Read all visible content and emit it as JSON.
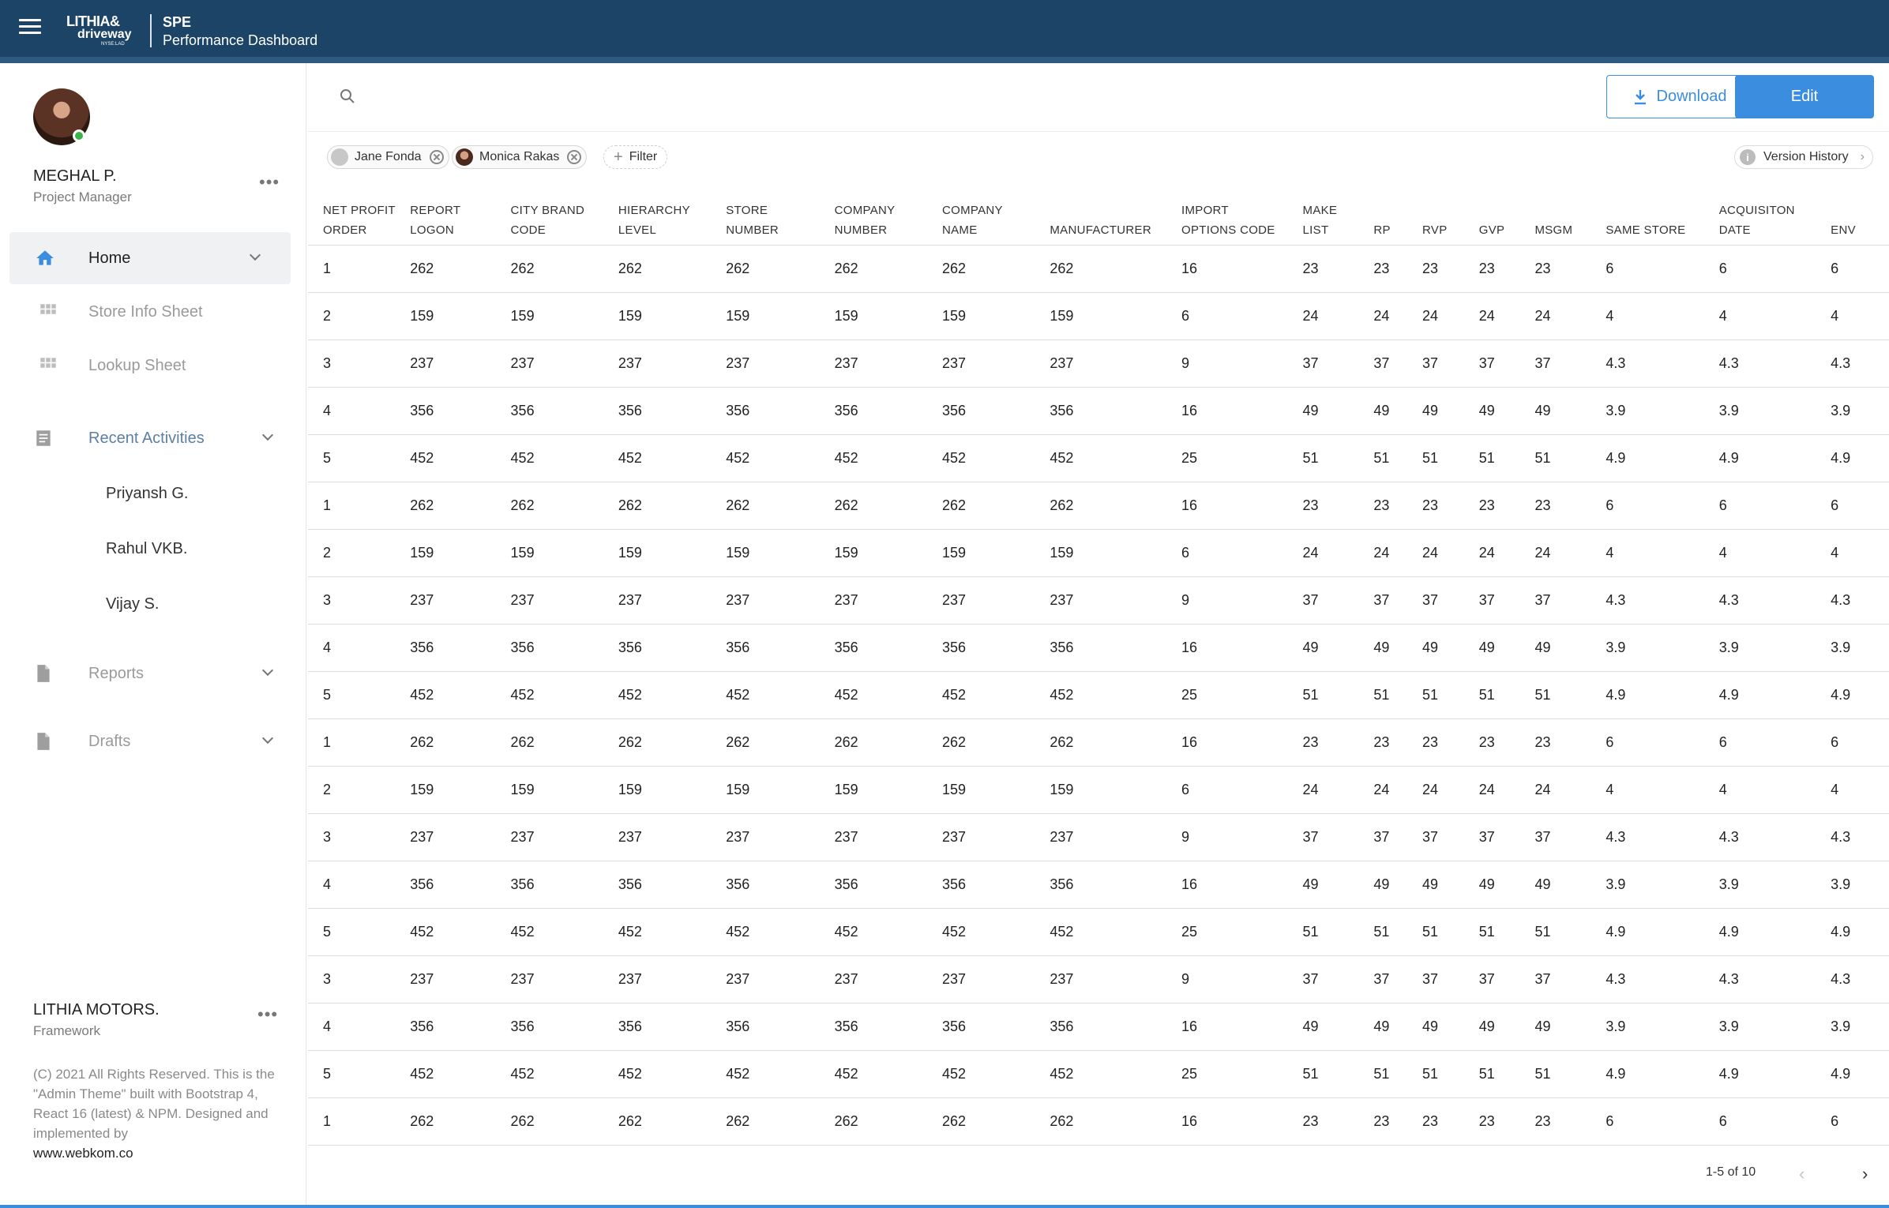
{
  "app": {
    "logo_line1": "LITHIA&",
    "logo_line2": "driveway",
    "logo_line3": "NYSE:LAD",
    "title": "SPE",
    "subtitle": "Performance Dashboard"
  },
  "user": {
    "name": "MEGHAL P.",
    "role": "Project Manager"
  },
  "sidebar": {
    "home": "Home",
    "store_info": "Store Info Sheet",
    "lookup": "Lookup Sheet",
    "recent": "Recent Activities",
    "recent_items": [
      "Priyansh G.",
      "Rahul VKB.",
      "Vijay S."
    ],
    "reports": "Reports",
    "drafts": "Drafts"
  },
  "footer": {
    "company": "LITHIA MOTORS.",
    "company_sub": "Framework",
    "copyright": "(C) 2021 All Rights Reserved. This is the \"Admin Theme\" built with Bootstrap 4, React 16 (latest) & NPM. Designed and implemented by",
    "link": "www.webkom.co"
  },
  "toolbar": {
    "download": "Download",
    "edit": "Edit"
  },
  "filters": {
    "chips": [
      "Jane Fonda",
      "Monica Rakas"
    ],
    "add_filter": "Filter",
    "version_history": "Version History"
  },
  "table": {
    "columns": [
      [
        "NET PROFIT",
        "ORDER"
      ],
      [
        "REPORT",
        "LOGON"
      ],
      [
        "CITY BRAND",
        "CODE"
      ],
      [
        "HIERARCHY",
        "LEVEL"
      ],
      [
        "STORE",
        "NUMBER"
      ],
      [
        "COMPANY",
        "NUMBER"
      ],
      [
        "COMPANY",
        "NAME"
      ],
      [
        "MANUFACTURER",
        ""
      ],
      [
        "IMPORT",
        "OPTIONS CODE"
      ],
      [
        "MAKE",
        "LIST"
      ],
      [
        "RP",
        ""
      ],
      [
        "RVP",
        ""
      ],
      [
        "GVP",
        ""
      ],
      [
        "MSGM",
        ""
      ],
      [
        "SAME STORE",
        ""
      ],
      [
        "ACQUISITON",
        "DATE"
      ],
      [
        "ENV",
        ""
      ]
    ],
    "rows": [
      [
        "1",
        "262",
        "262",
        "262",
        "262",
        "262",
        "262",
        "262",
        "16",
        "23",
        "23",
        "23",
        "23",
        "23",
        "6",
        "6",
        "6"
      ],
      [
        "2",
        "159",
        "159",
        "159",
        "159",
        "159",
        "159",
        "159",
        "6",
        "24",
        "24",
        "24",
        "24",
        "24",
        "4",
        "4",
        "4"
      ],
      [
        "3",
        "237",
        "237",
        "237",
        "237",
        "237",
        "237",
        "237",
        "9",
        "37",
        "37",
        "37",
        "37",
        "37",
        "4.3",
        "4.3",
        "4.3"
      ],
      [
        "4",
        "356",
        "356",
        "356",
        "356",
        "356",
        "356",
        "356",
        "16",
        "49",
        "49",
        "49",
        "49",
        "49",
        "3.9",
        "3.9",
        "3.9"
      ],
      [
        "5",
        "452",
        "452",
        "452",
        "452",
        "452",
        "452",
        "452",
        "25",
        "51",
        "51",
        "51",
        "51",
        "51",
        "4.9",
        "4.9",
        "4.9"
      ],
      [
        "1",
        "262",
        "262",
        "262",
        "262",
        "262",
        "262",
        "262",
        "16",
        "23",
        "23",
        "23",
        "23",
        "23",
        "6",
        "6",
        "6"
      ],
      [
        "2",
        "159",
        "159",
        "159",
        "159",
        "159",
        "159",
        "159",
        "6",
        "24",
        "24",
        "24",
        "24",
        "24",
        "4",
        "4",
        "4"
      ],
      [
        "3",
        "237",
        "237",
        "237",
        "237",
        "237",
        "237",
        "237",
        "9",
        "37",
        "37",
        "37",
        "37",
        "37",
        "4.3",
        "4.3",
        "4.3"
      ],
      [
        "4",
        "356",
        "356",
        "356",
        "356",
        "356",
        "356",
        "356",
        "16",
        "49",
        "49",
        "49",
        "49",
        "49",
        "3.9",
        "3.9",
        "3.9"
      ],
      [
        "5",
        "452",
        "452",
        "452",
        "452",
        "452",
        "452",
        "452",
        "25",
        "51",
        "51",
        "51",
        "51",
        "51",
        "4.9",
        "4.9",
        "4.9"
      ],
      [
        "1",
        "262",
        "262",
        "262",
        "262",
        "262",
        "262",
        "262",
        "16",
        "23",
        "23",
        "23",
        "23",
        "23",
        "6",
        "6",
        "6"
      ],
      [
        "2",
        "159",
        "159",
        "159",
        "159",
        "159",
        "159",
        "159",
        "6",
        "24",
        "24",
        "24",
        "24",
        "24",
        "4",
        "4",
        "4"
      ],
      [
        "3",
        "237",
        "237",
        "237",
        "237",
        "237",
        "237",
        "237",
        "9",
        "37",
        "37",
        "37",
        "37",
        "37",
        "4.3",
        "4.3",
        "4.3"
      ],
      [
        "4",
        "356",
        "356",
        "356",
        "356",
        "356",
        "356",
        "356",
        "16",
        "49",
        "49",
        "49",
        "49",
        "49",
        "3.9",
        "3.9",
        "3.9"
      ],
      [
        "5",
        "452",
        "452",
        "452",
        "452",
        "452",
        "452",
        "452",
        "25",
        "51",
        "51",
        "51",
        "51",
        "51",
        "4.9",
        "4.9",
        "4.9"
      ],
      [
        "3",
        "237",
        "237",
        "237",
        "237",
        "237",
        "237",
        "237",
        "9",
        "37",
        "37",
        "37",
        "37",
        "37",
        "4.3",
        "4.3",
        "4.3"
      ],
      [
        "4",
        "356",
        "356",
        "356",
        "356",
        "356",
        "356",
        "356",
        "16",
        "49",
        "49",
        "49",
        "49",
        "49",
        "3.9",
        "3.9",
        "3.9"
      ],
      [
        "5",
        "452",
        "452",
        "452",
        "452",
        "452",
        "452",
        "452",
        "25",
        "51",
        "51",
        "51",
        "51",
        "51",
        "4.9",
        "4.9",
        "4.9"
      ],
      [
        "1",
        "262",
        "262",
        "262",
        "262",
        "262",
        "262",
        "262",
        "16",
        "23",
        "23",
        "23",
        "23",
        "23",
        "6",
        "6",
        "6"
      ]
    ]
  },
  "pagination": {
    "label": "1-5 of 10"
  },
  "colors": {
    "topbar": "#1c4466",
    "accent": "#3b8de0"
  },
  "icons": {
    "menu": "hamburger-icon",
    "search": "search-icon",
    "home": "home-icon",
    "grid": "grid-icon",
    "list": "list-icon",
    "document": "document-icon",
    "download": "download-icon",
    "info": "info-icon"
  }
}
